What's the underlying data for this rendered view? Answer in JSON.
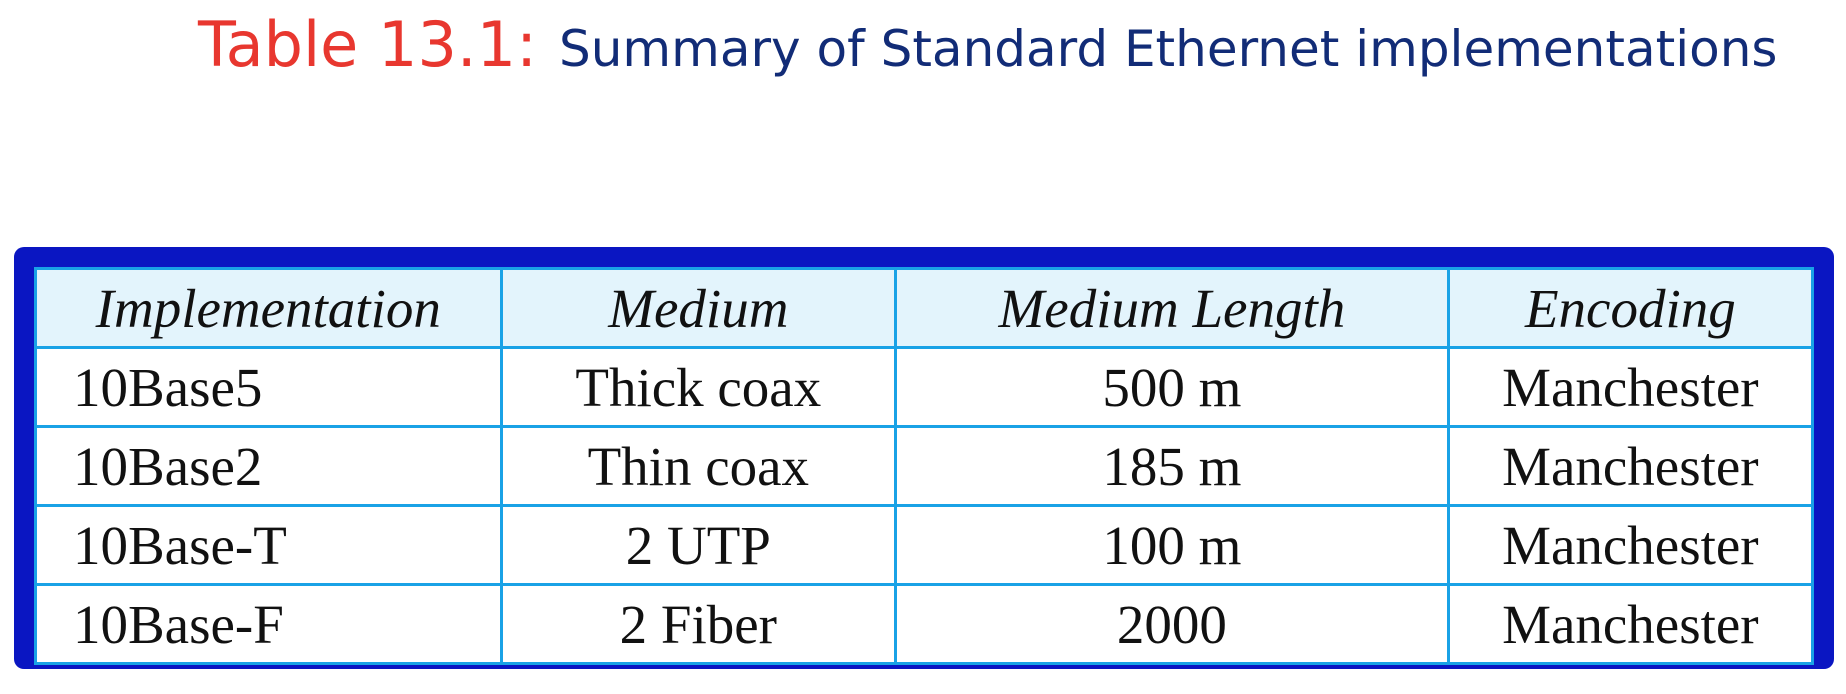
{
  "title": {
    "number": "Table 13.1",
    "colon": ":",
    "text": "Summary of Standard Ethernet implementations"
  },
  "table": {
    "headers": [
      "Implementation",
      "Medium",
      "Medium Length",
      "Encoding"
    ],
    "rows": [
      [
        "10Base5",
        "Thick coax",
        "500 m",
        "Manchester"
      ],
      [
        "10Base2",
        "Thin coax",
        "185 m",
        "Manchester"
      ],
      [
        "10Base-T",
        "2 UTP",
        "100 m",
        "Manchester"
      ],
      [
        "10Base-F",
        "2 Fiber",
        "2000",
        "Manchester"
      ]
    ]
  },
  "colors": {
    "title_number": "#e8372f",
    "title_text": "#122c77",
    "frame": "#0a16c2",
    "grid": "#19a2e6",
    "header_bg": "#e3f4fc"
  }
}
